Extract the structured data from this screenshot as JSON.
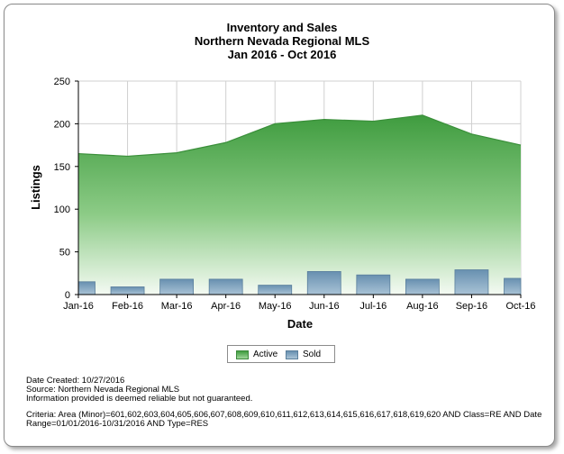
{
  "chart_data": {
    "type": "area",
    "title": [
      "Inventory and Sales",
      "Northern Nevada Regional MLS",
      "Jan 2016 - Oct 2016"
    ],
    "xlabel": "Date",
    "ylabel": "Listings",
    "ylim": [
      0,
      250
    ],
    "yticks": [
      0,
      50,
      100,
      150,
      200,
      250
    ],
    "categories": [
      "Jan-16",
      "Feb-16",
      "Mar-16",
      "Apr-16",
      "May-16",
      "Jun-16",
      "Jul-16",
      "Aug-16",
      "Sep-16",
      "Oct-16"
    ],
    "series": [
      {
        "name": "Active",
        "kind": "area",
        "color": "#4aa64a",
        "values": [
          165,
          162,
          166,
          178,
          200,
          205,
          203,
          210,
          188,
          175
        ]
      },
      {
        "name": "Sold",
        "kind": "bar",
        "color": "#6f96b4",
        "values": [
          15,
          9,
          18,
          18,
          11,
          27,
          23,
          18,
          29,
          19
        ]
      }
    ],
    "grid": true,
    "legend_position": "bottom"
  },
  "footer": {
    "date_created": "Date Created: 10/27/2016",
    "source": "Source: Northern Nevada Regional MLS",
    "disclaimer": "Information provided is deemed reliable but not guaranteed.",
    "criteria_line1": "Criteria: Area (Minor)=601,602,603,604,605,606,607,608,609,610,611,612,613,614,615,616,617,618,619,620 AND Class=RE AND Date",
    "criteria_line2": "Range=01/01/2016-10/31/2016 AND Type=RES"
  }
}
